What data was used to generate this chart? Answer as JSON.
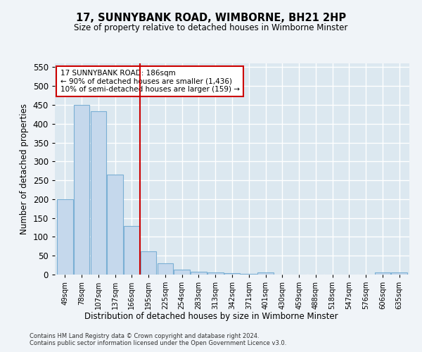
{
  "title": "17, SUNNYBANK ROAD, WIMBORNE, BH21 2HP",
  "subtitle": "Size of property relative to detached houses in Wimborne Minster",
  "xlabel": "Distribution of detached houses by size in Wimborne Minster",
  "ylabel": "Number of detached properties",
  "bar_color": "#c5d8ec",
  "bar_edge_color": "#7aafd4",
  "categories": [
    "49sqm",
    "78sqm",
    "107sqm",
    "137sqm",
    "166sqm",
    "195sqm",
    "225sqm",
    "254sqm",
    "283sqm",
    "313sqm",
    "342sqm",
    "371sqm",
    "401sqm",
    "430sqm",
    "459sqm",
    "488sqm",
    "518sqm",
    "547sqm",
    "576sqm",
    "606sqm",
    "635sqm"
  ],
  "values": [
    200,
    450,
    433,
    265,
    128,
    62,
    29,
    14,
    8,
    5,
    3,
    2,
    5,
    0,
    0,
    0,
    0,
    0,
    0,
    5,
    5
  ],
  "ylim": [
    0,
    560
  ],
  "yticks": [
    0,
    50,
    100,
    150,
    200,
    250,
    300,
    350,
    400,
    450,
    500,
    550
  ],
  "vline_x": 4.5,
  "vline_color": "#cc0000",
  "annotation_text": "17 SUNNYBANK ROAD: 186sqm\n← 90% of detached houses are smaller (1,436)\n10% of semi-detached houses are larger (159) →",
  "footer_line1": "Contains HM Land Registry data © Crown copyright and database right 2024.",
  "footer_line2": "Contains public sector information licensed under the Open Government Licence v3.0.",
  "fig_bg_color": "#f0f4f8",
  "ax_bg_color": "#dce8f0",
  "grid_color": "#ffffff"
}
